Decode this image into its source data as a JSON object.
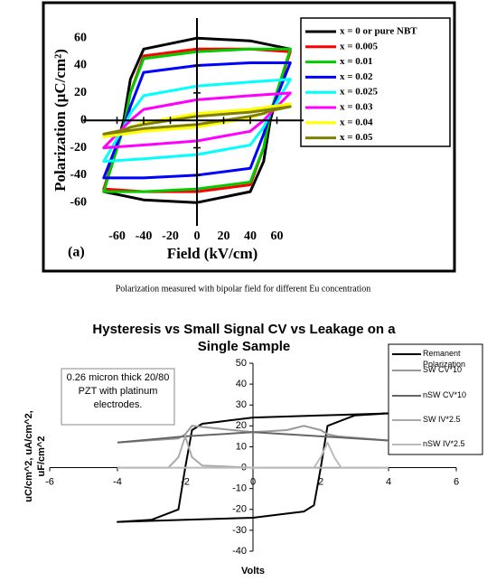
{
  "chart_data": [
    {
      "type": "line",
      "panel_label": "(a)",
      "xlabel": "Field (kV/cm)",
      "ylabel": "Polarization (μC/cm²)",
      "xlim": [
        -80,
        80
      ],
      "xticks": [
        -60,
        -40,
        -20,
        0,
        20,
        40,
        60
      ],
      "ylim": [
        -75,
        70
      ],
      "yticks": [
        -60,
        -40,
        -20,
        0,
        20,
        40,
        60
      ],
      "closed_loops": true,
      "series": [
        {
          "name": "x = 0 or pure NBT",
          "color": "#000000",
          "x": [
            70,
            40,
            0,
            -40,
            -50,
            -55,
            -70,
            -70,
            -40,
            0,
            40,
            50,
            55,
            70
          ],
          "values": [
            52,
            58,
            60,
            52,
            30,
            0,
            -52,
            -52,
            -58,
            -60,
            -52,
            -30,
            0,
            52
          ]
        },
        {
          "name": "x = 0.005",
          "color": "#ff0000",
          "x": [
            70,
            40,
            0,
            -40,
            -50,
            -55,
            -70,
            -70,
            -40,
            0,
            40,
            50,
            55,
            70
          ],
          "values": [
            50,
            52,
            52,
            47,
            20,
            -5,
            -50,
            -50,
            -52,
            -52,
            -47,
            -20,
            5,
            50
          ]
        },
        {
          "name": "x = 0.01",
          "color": "#00cc00",
          "x": [
            70,
            40,
            0,
            -40,
            -50,
            -55,
            -70,
            -70,
            -40,
            0,
            40,
            50,
            55,
            70
          ],
          "values": [
            52,
            52,
            50,
            45,
            20,
            -5,
            -52,
            -52,
            -52,
            -50,
            -45,
            -20,
            5,
            52
          ]
        },
        {
          "name": "x = 0.02",
          "color": "#0000ff",
          "x": [
            70,
            40,
            0,
            -40,
            -50,
            -55,
            -70,
            -70,
            -40,
            0,
            40,
            50,
            55,
            70
          ],
          "values": [
            42,
            42,
            40,
            35,
            10,
            -5,
            -42,
            -42,
            -42,
            -40,
            -35,
            -10,
            5,
            42
          ]
        },
        {
          "name": "x = 0.025",
          "color": "#00ffff",
          "x": [
            70,
            40,
            0,
            -40,
            -50,
            -55,
            -70,
            -70,
            -40,
            0,
            40,
            50,
            55,
            70
          ],
          "values": [
            30,
            28,
            25,
            18,
            5,
            -5,
            -30,
            -30,
            -28,
            -25,
            -18,
            -5,
            5,
            30
          ]
        },
        {
          "name": "x = 0.03",
          "color": "#ff00ff",
          "x": [
            70,
            40,
            0,
            -40,
            -50,
            -55,
            -70,
            -70,
            -40,
            0,
            40,
            50,
            55,
            70
          ],
          "values": [
            20,
            18,
            15,
            8,
            0,
            -5,
            -20,
            -20,
            -18,
            -15,
            -8,
            0,
            5,
            20
          ]
        },
        {
          "name": "x = 0.04",
          "color": "#ffff00",
          "x": [
            70,
            40,
            0,
            -40,
            -50,
            -55,
            -70,
            -70,
            -40,
            0,
            40,
            50,
            55,
            70
          ],
          "values": [
            12,
            8,
            5,
            -2,
            -5,
            -7,
            -12,
            -12,
            -8,
            -5,
            2,
            5,
            7,
            12
          ]
        },
        {
          "name": "x = 0.05",
          "color": "#808000",
          "x": [
            70,
            40,
            0,
            -40,
            -50,
            -55,
            -70,
            -70,
            -40,
            0,
            40,
            50,
            55,
            70
          ],
          "values": [
            10,
            6,
            3,
            -3,
            -5,
            -7,
            -10,
            -10,
            -6,
            -3,
            3,
            5,
            7,
            10
          ]
        }
      ]
    },
    {
      "type": "line",
      "title": "Hysteresis vs Small Signal CV vs Leakage on a Single Sample",
      "annotation": "0.26 micron thick 20/80 PZT with platinum electrodes.",
      "xlabel": "Volts",
      "ylabel": [
        "uC/cm^2, uA/cm^2,",
        "uF/cm^2"
      ],
      "xlim": [
        -6,
        6
      ],
      "xticks": [
        -6,
        -4,
        -2,
        0,
        2,
        4,
        6
      ],
      "ylim": [
        -40,
        50
      ],
      "yticks": [
        -40,
        -30,
        -20,
        -10,
        0,
        10,
        20,
        30,
        40,
        50
      ],
      "series": [
        {
          "name": "Remanent Polarization",
          "color": "#000000",
          "x": [
            4,
            2,
            0,
            -1,
            -1.5,
            -1.8,
            -2,
            -2.2,
            -3,
            -4,
            -4,
            -2,
            0,
            1,
            1.5,
            1.8,
            2,
            2.2,
            3,
            4
          ],
          "values": [
            26,
            25,
            24,
            22,
            21,
            18,
            0,
            -20,
            -25,
            -26,
            -26,
            -25,
            -24,
            -22,
            -21,
            -18,
            0,
            20,
            25,
            26
          ]
        },
        {
          "name": "SW CV*10",
          "color": "#999999",
          "x": [
            -4,
            -2.2,
            -2,
            -1.8,
            0,
            1,
            1.5,
            2,
            2.2,
            2.5,
            4
          ],
          "values": [
            12,
            14,
            16,
            20,
            17,
            18,
            20,
            18,
            16,
            15,
            13
          ]
        },
        {
          "name": "nSW CV*10",
          "color": "#666666",
          "x": [
            -4,
            -2,
            0,
            2,
            4
          ],
          "values": [
            12,
            15,
            17,
            15,
            13
          ]
        },
        {
          "name": "SW IV*2.5",
          "color": "#aaaaaa",
          "x": [
            -4,
            -2.5,
            -2.2,
            -2,
            -1.8,
            -1.5,
            0,
            4
          ],
          "values": [
            0,
            0,
            5,
            15,
            5,
            1,
            0,
            0
          ]
        },
        {
          "name": "nSW IV*2.5",
          "color": "#bbbbbb",
          "x": [
            -4,
            0,
            1.8,
            2,
            2.2,
            2.4,
            2.6,
            4
          ],
          "values": [
            0,
            0,
            0,
            5,
            12,
            5,
            0,
            0
          ]
        }
      ]
    }
  ],
  "caption": "Polarization measured with bipolar field for different Eu concentration"
}
